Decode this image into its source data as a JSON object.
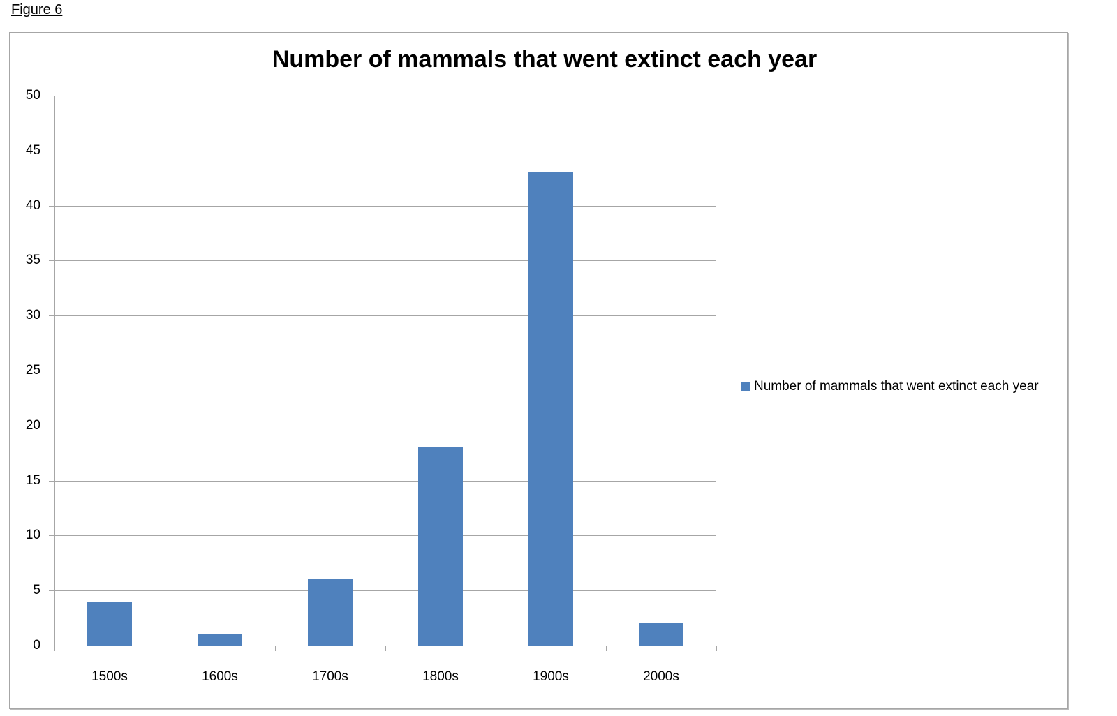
{
  "figure_label": "Figure 6",
  "chart_data": {
    "type": "bar",
    "title": "Number of mammals that went extinct each year",
    "categories": [
      "1500s",
      "1600s",
      "1700s",
      "1800s",
      "1900s",
      "2000s"
    ],
    "series": [
      {
        "name": "Number of mammals that went extinct each year",
        "values": [
          4,
          1,
          6,
          18,
          43,
          2
        ],
        "color": "#4f81bd"
      }
    ],
    "xlabel": "",
    "ylabel": "",
    "ylim": [
      0,
      50
    ],
    "yticks": [
      0,
      5,
      10,
      15,
      20,
      25,
      30,
      35,
      40,
      45,
      50
    ],
    "grid": true,
    "legend_position": "right"
  }
}
